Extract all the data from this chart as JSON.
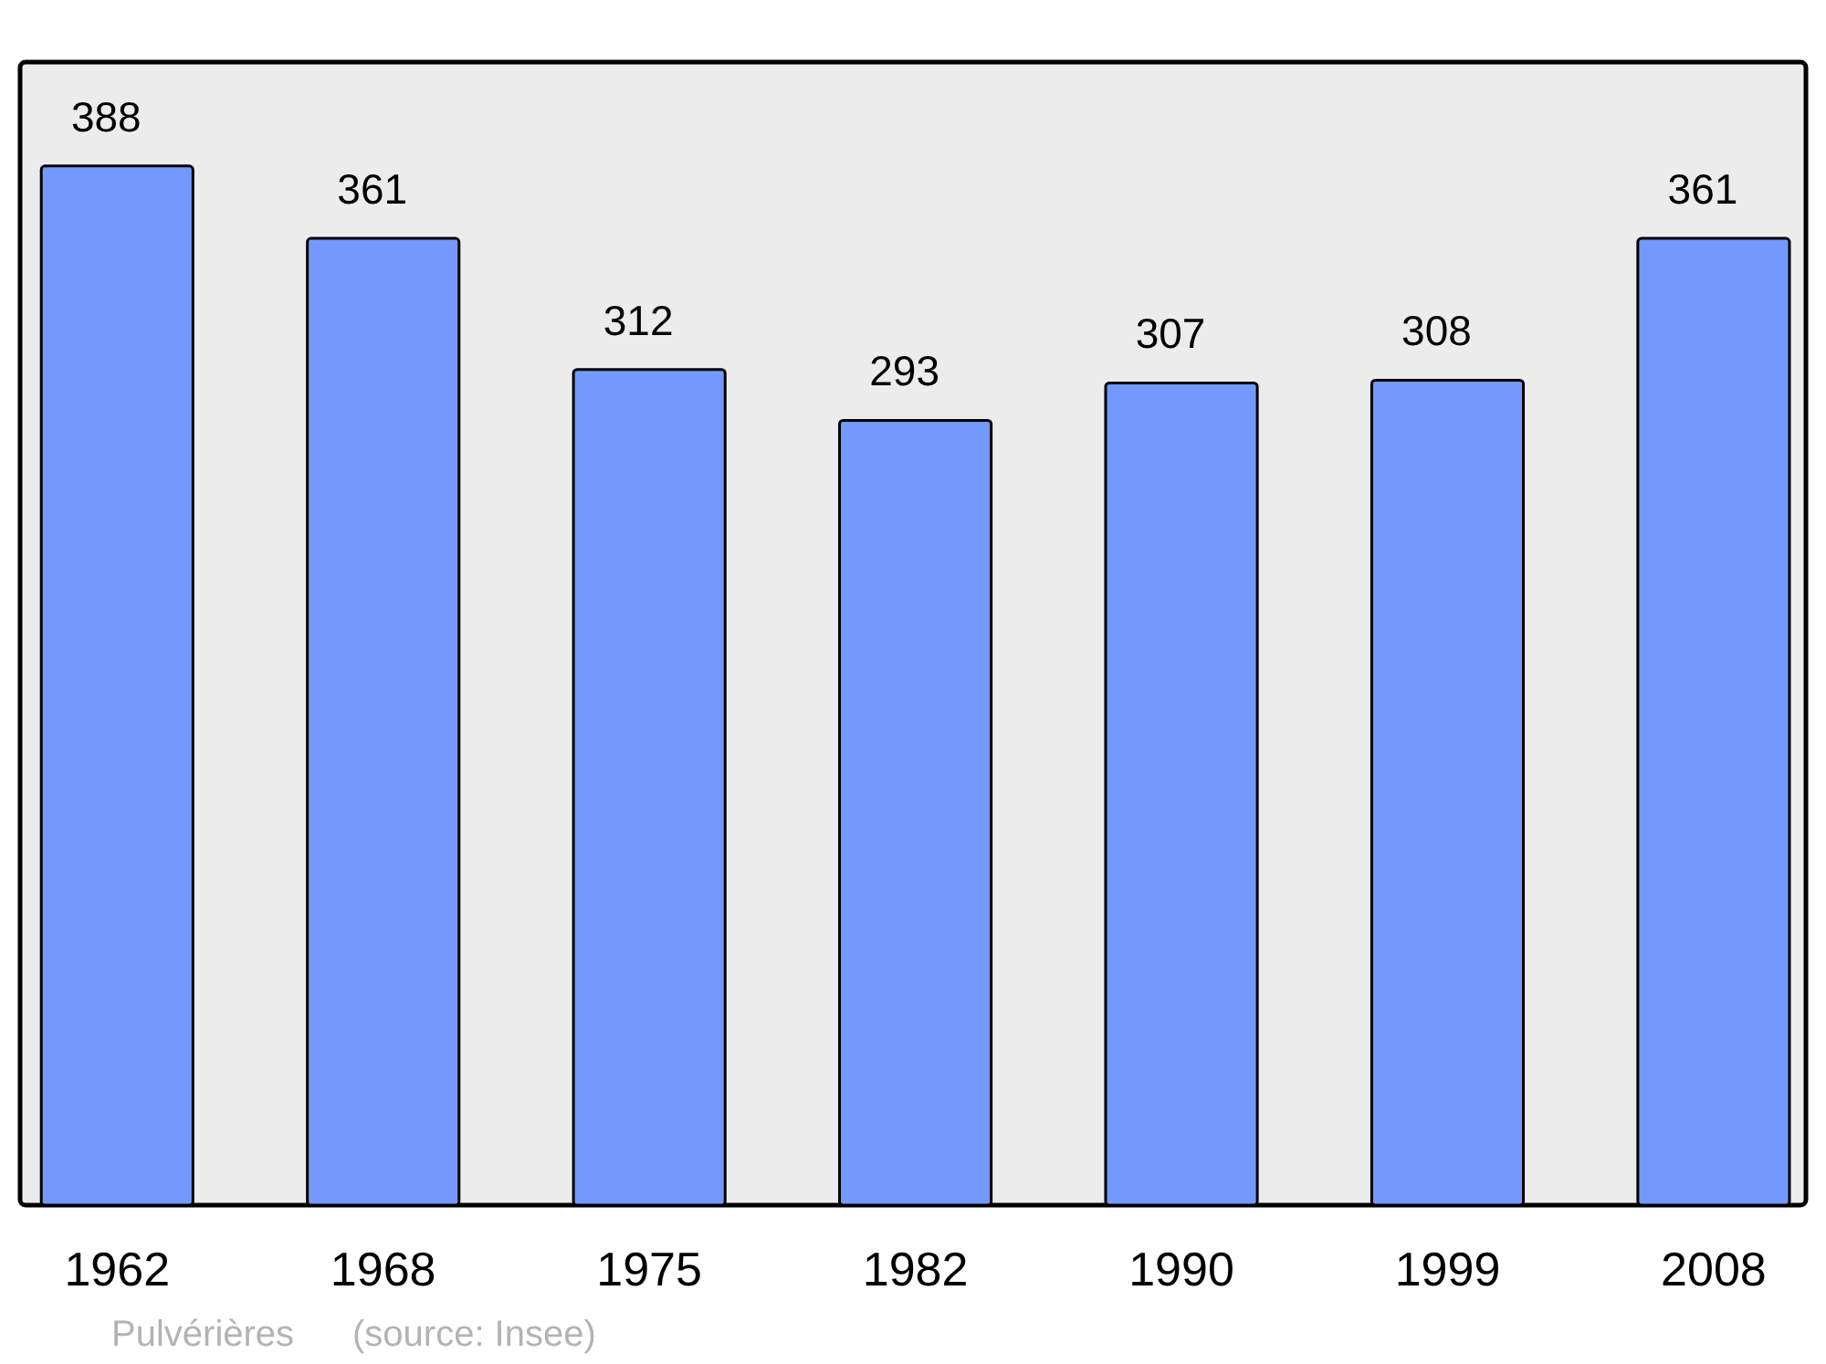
{
  "chart_data": {
    "type": "bar",
    "categories": [
      "1962",
      "1968",
      "1975",
      "1982",
      "1990",
      "1999",
      "2008"
    ],
    "values": [
      388,
      361,
      312,
      293,
      307,
      308,
      361
    ],
    "color": "#7399ff",
    "data_labels": true,
    "annotations": [
      "Pulvérières",
      "(source: Insee)"
    ]
  }
}
